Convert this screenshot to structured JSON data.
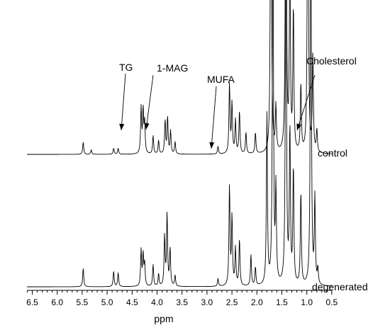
{
  "chart_data": {
    "type": "line",
    "title": "",
    "xlabel": "ppm",
    "ylabel": "",
    "x_reversed": true,
    "xlim": [
      6.6,
      0.5
    ],
    "x_ticks": [
      6.5,
      6.0,
      5.5,
      5.0,
      4.5,
      4.0,
      3.5,
      3.0,
      2.5,
      2.0,
      1.5,
      1.0,
      0.5
    ],
    "x_tick_labels": [
      "6.5",
      "6.0",
      "5.5",
      "5.0",
      "4.5",
      "4.0",
      "3.5",
      "3.0",
      "2.5",
      "2.0",
      "1.5",
      "1.0",
      "0.5"
    ],
    "grid": false,
    "legend": "none",
    "series": [
      {
        "name": "control",
        "peaks": [
          {
            "ppm": 5.48,
            "height": 0.08
          },
          {
            "ppm": 5.32,
            "height": 0.03
          },
          {
            "ppm": 4.87,
            "height": 0.04
          },
          {
            "ppm": 4.78,
            "height": 0.04
          },
          {
            "ppm": 4.32,
            "height": 0.3
          },
          {
            "ppm": 4.28,
            "height": 0.28
          },
          {
            "ppm": 4.25,
            "height": 0.2
          },
          {
            "ppm": 4.08,
            "height": 0.12
          },
          {
            "ppm": 3.97,
            "height": 0.09
          },
          {
            "ppm": 3.84,
            "height": 0.22
          },
          {
            "ppm": 3.79,
            "height": 0.24
          },
          {
            "ppm": 3.73,
            "height": 0.15
          },
          {
            "ppm": 3.64,
            "height": 0.08
          },
          {
            "ppm": 2.78,
            "height": 0.05
          },
          {
            "ppm": 2.55,
            "height": 0.46
          },
          {
            "ppm": 2.5,
            "height": 0.33
          },
          {
            "ppm": 2.43,
            "height": 0.22
          },
          {
            "ppm": 2.35,
            "height": 0.28
          },
          {
            "ppm": 2.22,
            "height": 0.14
          },
          {
            "ppm": 2.03,
            "height": 0.14
          },
          {
            "ppm": 1.72,
            "height": 2.6
          },
          {
            "ppm": 1.62,
            "height": 0.3
          },
          {
            "ppm": 1.42,
            "height": 2.6
          },
          {
            "ppm": 1.34,
            "height": 1.3
          },
          {
            "ppm": 1.27,
            "height": 0.95
          },
          {
            "ppm": 1.12,
            "height": 0.45
          },
          {
            "ppm": 0.98,
            "height": 2.6
          },
          {
            "ppm": 0.88,
            "height": 0.65
          },
          {
            "ppm": 0.8,
            "height": 0.15
          }
        ]
      },
      {
        "name": "degenerated",
        "peaks": [
          {
            "ppm": 5.48,
            "height": 0.12
          },
          {
            "ppm": 4.87,
            "height": 0.1
          },
          {
            "ppm": 4.78,
            "height": 0.09
          },
          {
            "ppm": 4.32,
            "height": 0.23
          },
          {
            "ppm": 4.28,
            "height": 0.2
          },
          {
            "ppm": 4.25,
            "height": 0.14
          },
          {
            "ppm": 4.08,
            "height": 0.14
          },
          {
            "ppm": 3.97,
            "height": 0.08
          },
          {
            "ppm": 3.85,
            "height": 0.32
          },
          {
            "ppm": 3.8,
            "height": 0.46
          },
          {
            "ppm": 3.74,
            "height": 0.24
          },
          {
            "ppm": 3.64,
            "height": 0.07
          },
          {
            "ppm": 2.78,
            "height": 0.05
          },
          {
            "ppm": 2.55,
            "height": 0.64
          },
          {
            "ppm": 2.5,
            "height": 0.44
          },
          {
            "ppm": 2.43,
            "height": 0.24
          },
          {
            "ppm": 2.35,
            "height": 0.3
          },
          {
            "ppm": 2.12,
            "height": 0.2
          },
          {
            "ppm": 2.03,
            "height": 0.12
          },
          {
            "ppm": 1.8,
            "height": 1.1
          },
          {
            "ppm": 1.68,
            "height": 2.6
          },
          {
            "ppm": 1.62,
            "height": 0.6
          },
          {
            "ppm": 1.42,
            "height": 2.6
          },
          {
            "ppm": 1.34,
            "height": 1.0
          },
          {
            "ppm": 1.27,
            "height": 0.75
          },
          {
            "ppm": 1.12,
            "height": 0.6
          },
          {
            "ppm": 0.92,
            "height": 2.6
          },
          {
            "ppm": 0.84,
            "height": 0.55
          },
          {
            "ppm": 0.78,
            "height": 0.1
          }
        ]
      }
    ],
    "trace_labels": [
      "control",
      "degenerated"
    ],
    "annotations": [
      {
        "text": "TG",
        "target_ppm": 4.28
      },
      {
        "text": "1-MAG",
        "target_ppm": 3.81
      },
      {
        "text": "MUFA",
        "target_ppm": 2.45
      },
      {
        "text": "Cholesterol",
        "target_ppm": 0.8
      }
    ]
  }
}
